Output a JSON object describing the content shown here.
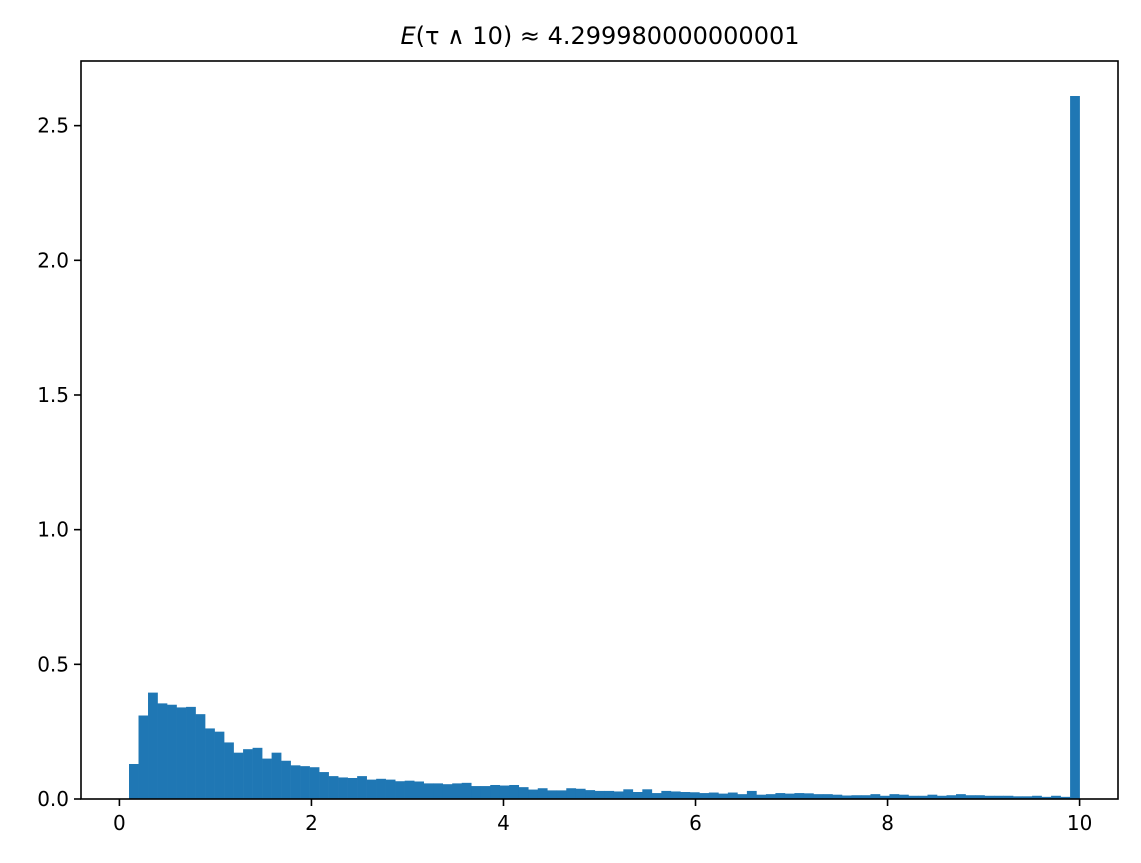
{
  "chart_data": {
    "type": "bar",
    "title": "E(τ ∧ 10) ≈ 4.299980000000001",
    "title_parts": {
      "italic": "E",
      "rest": "(τ ∧ 10) ≈ 4.299980000000001"
    },
    "xlabel": "",
    "ylabel": "",
    "xlim": [
      -0.4,
      10.4
    ],
    "ylim": [
      0,
      2.74
    ],
    "grid": false,
    "xticks": [
      0,
      2,
      4,
      6,
      8,
      10
    ],
    "xtick_labels": [
      "0",
      "2",
      "4",
      "6",
      "8",
      "10"
    ],
    "yticks": [
      0.0,
      0.5,
      1.0,
      1.5,
      2.0,
      2.5
    ],
    "ytick_labels": [
      "0.0",
      "0.5",
      "1.0",
      "1.5",
      "2.0",
      "2.5"
    ],
    "bar_color": "#1f77b4",
    "bin_start": 0.1,
    "bin_width": 0.099,
    "values": [
      0.13,
      0.31,
      0.395,
      0.355,
      0.35,
      0.34,
      0.342,
      0.315,
      0.262,
      0.25,
      0.21,
      0.172,
      0.185,
      0.19,
      0.15,
      0.172,
      0.142,
      0.125,
      0.122,
      0.118,
      0.1,
      0.085,
      0.08,
      0.078,
      0.085,
      0.072,
      0.075,
      0.072,
      0.066,
      0.068,
      0.065,
      0.058,
      0.058,
      0.055,
      0.058,
      0.06,
      0.048,
      0.048,
      0.052,
      0.05,
      0.052,
      0.044,
      0.035,
      0.04,
      0.032,
      0.032,
      0.04,
      0.038,
      0.033,
      0.03,
      0.03,
      0.028,
      0.036,
      0.026,
      0.036,
      0.022,
      0.03,
      0.028,
      0.026,
      0.025,
      0.022,
      0.024,
      0.02,
      0.024,
      0.018,
      0.03,
      0.016,
      0.018,
      0.022,
      0.02,
      0.022,
      0.021,
      0.018,
      0.018,
      0.016,
      0.013,
      0.014,
      0.014,
      0.018,
      0.012,
      0.018,
      0.016,
      0.012,
      0.012,
      0.016,
      0.012,
      0.014,
      0.018,
      0.014,
      0.014,
      0.012,
      0.012,
      0.012,
      0.01,
      0.01,
      0.012,
      0.008,
      0.012,
      0.008,
      2.61
    ]
  }
}
